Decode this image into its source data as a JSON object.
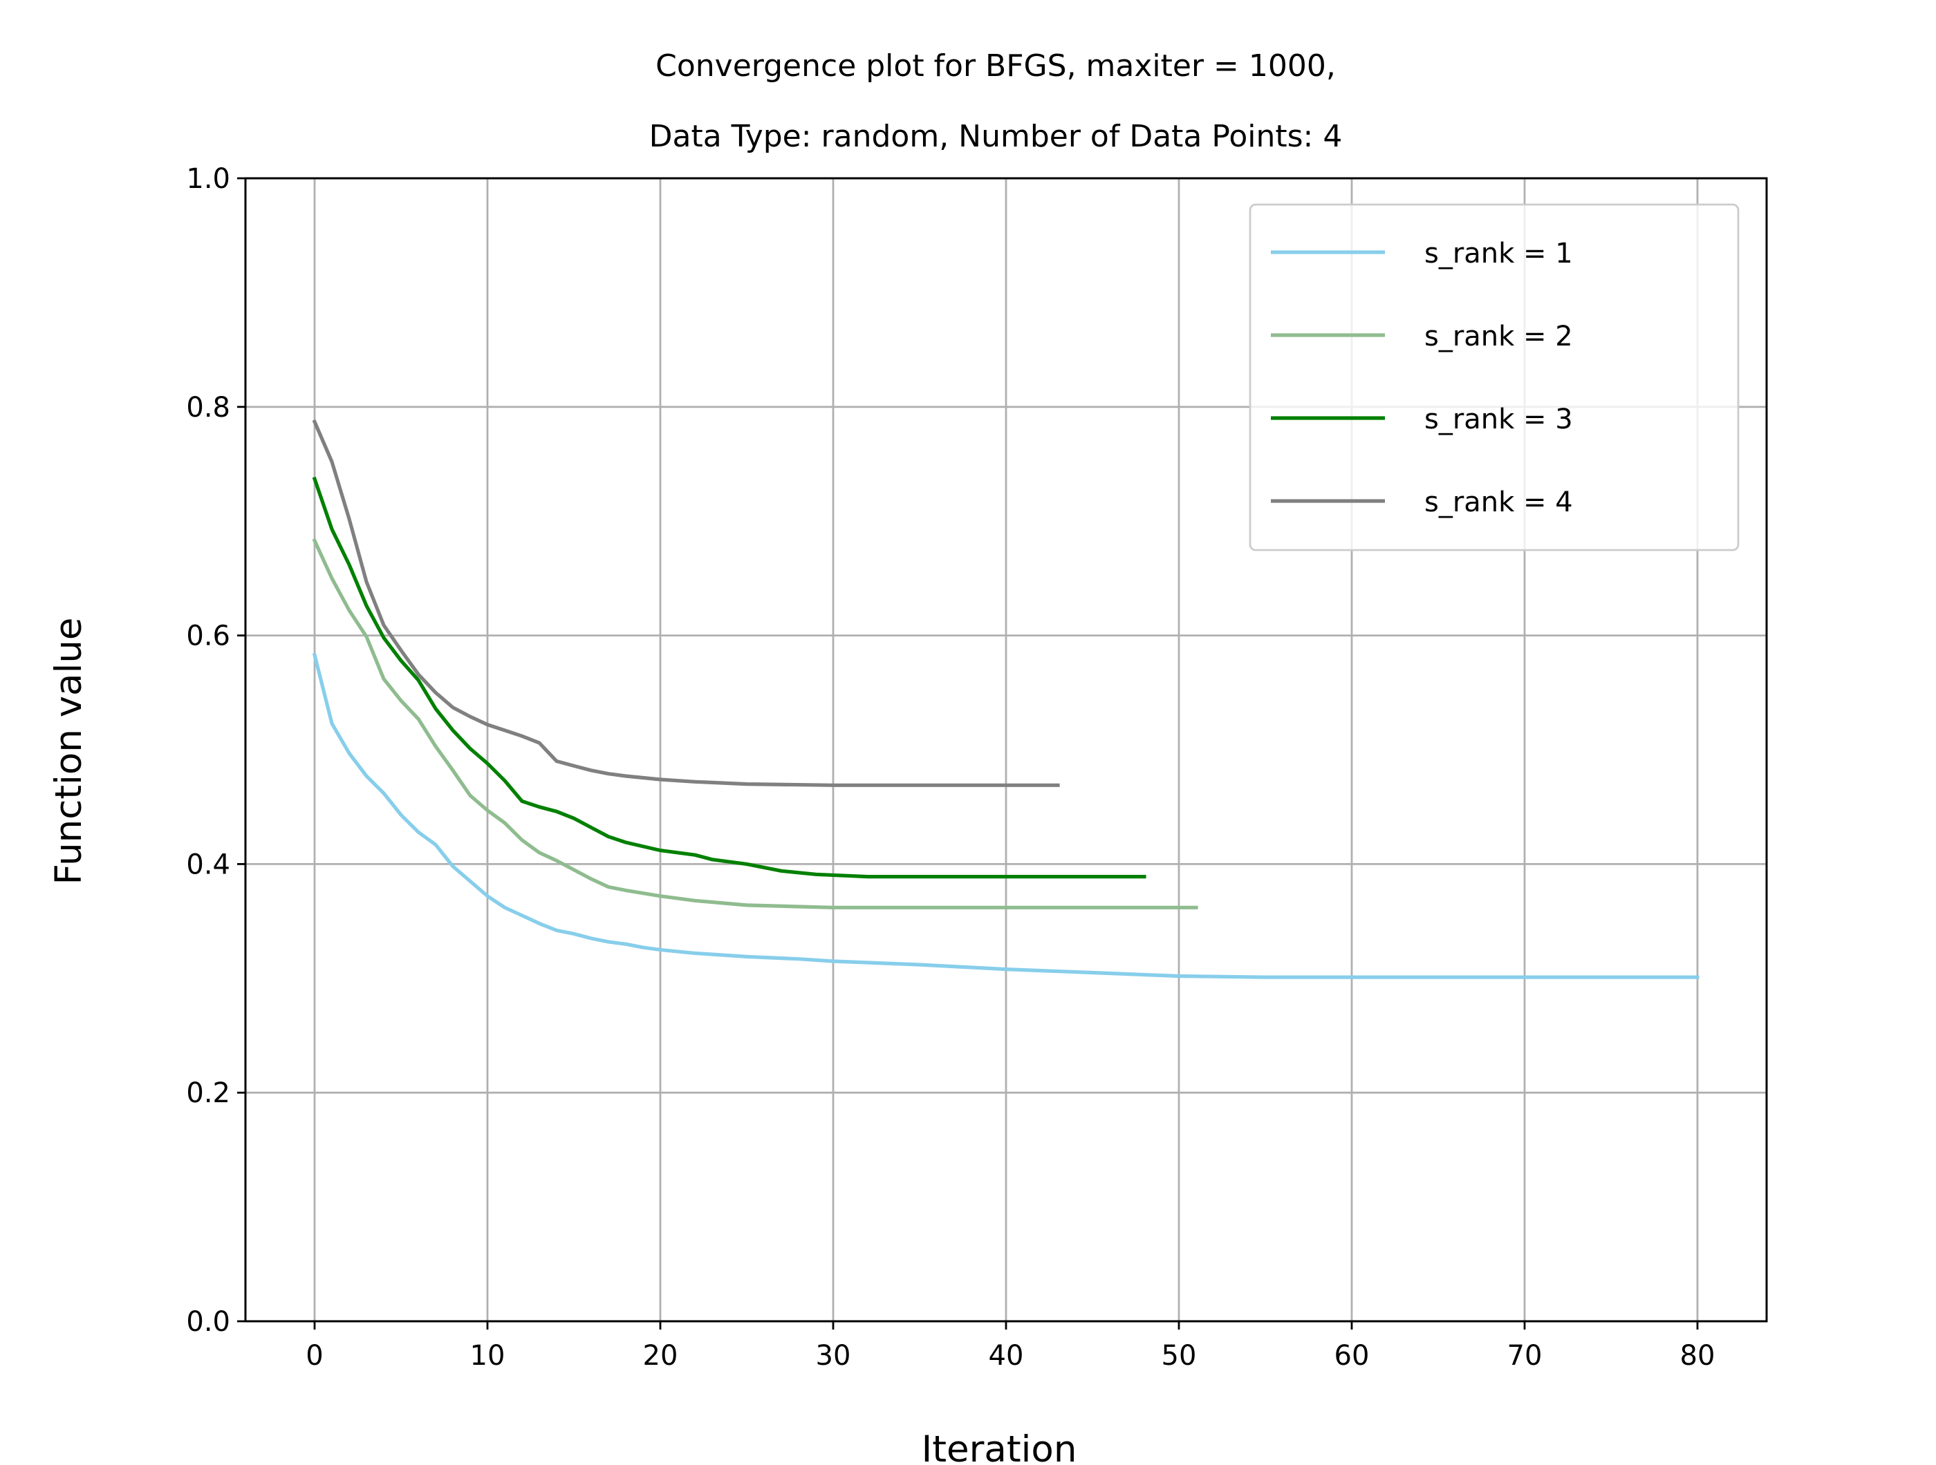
{
  "chart_data": {
    "type": "line",
    "title_line1": "Convergence plot for BFGS, maxiter = 1000,",
    "title_line2": "Data Type: random, Number of Data Points: 4",
    "xlabel": "Iteration",
    "ylabel": "Function value",
    "xlim": [
      -4,
      84
    ],
    "ylim": [
      0.0,
      1.0
    ],
    "xticks": [
      0,
      10,
      20,
      30,
      40,
      50,
      60,
      70,
      80
    ],
    "xtick_labels": [
      "0",
      "10",
      "20",
      "30",
      "40",
      "50",
      "60",
      "70",
      "80"
    ],
    "yticks": [
      0.0,
      0.2,
      0.4,
      0.6,
      0.8,
      1.0
    ],
    "ytick_labels": [
      "0.0",
      "0.2",
      "0.4",
      "0.6",
      "0.8",
      "1.0"
    ],
    "grid": true,
    "legend_position": "top-right",
    "series": [
      {
        "name": "s_rank = 1",
        "color": "#87ceeb",
        "points": [
          [
            0,
            0.583
          ],
          [
            1,
            0.523
          ],
          [
            2,
            0.497
          ],
          [
            3,
            0.477
          ],
          [
            4,
            0.462
          ],
          [
            5,
            0.443
          ],
          [
            6,
            0.428
          ],
          [
            7,
            0.417
          ],
          [
            8,
            0.398
          ],
          [
            9,
            0.385
          ],
          [
            10,
            0.372
          ],
          [
            11,
            0.362
          ],
          [
            12,
            0.355
          ],
          [
            13,
            0.348
          ],
          [
            14,
            0.342
          ],
          [
            15,
            0.339
          ],
          [
            16,
            0.335
          ],
          [
            17,
            0.332
          ],
          [
            18,
            0.33
          ],
          [
            19,
            0.327
          ],
          [
            20,
            0.325
          ],
          [
            22,
            0.322
          ],
          [
            25,
            0.319
          ],
          [
            28,
            0.317
          ],
          [
            30,
            0.315
          ],
          [
            35,
            0.312
          ],
          [
            40,
            0.308
          ],
          [
            45,
            0.305
          ],
          [
            50,
            0.302
          ],
          [
            55,
            0.301
          ],
          [
            60,
            0.301
          ],
          [
            70,
            0.301
          ],
          [
            80,
            0.301
          ]
        ]
      },
      {
        "name": "s_rank = 2",
        "color": "#8fbc8f",
        "points": [
          [
            0,
            0.683
          ],
          [
            1,
            0.65
          ],
          [
            2,
            0.622
          ],
          [
            3,
            0.599
          ],
          [
            4,
            0.562
          ],
          [
            5,
            0.543
          ],
          [
            6,
            0.527
          ],
          [
            7,
            0.503
          ],
          [
            8,
            0.482
          ],
          [
            9,
            0.46
          ],
          [
            10,
            0.447
          ],
          [
            11,
            0.436
          ],
          [
            12,
            0.421
          ],
          [
            13,
            0.41
          ],
          [
            14,
            0.403
          ],
          [
            15,
            0.395
          ],
          [
            16,
            0.387
          ],
          [
            17,
            0.38
          ],
          [
            18,
            0.377
          ],
          [
            20,
            0.372
          ],
          [
            22,
            0.368
          ],
          [
            25,
            0.364
          ],
          [
            30,
            0.362
          ],
          [
            35,
            0.362
          ],
          [
            40,
            0.362
          ],
          [
            45,
            0.362
          ],
          [
            51,
            0.362
          ]
        ]
      },
      {
        "name": "s_rank = 3",
        "color": "#008000",
        "points": [
          [
            0,
            0.737
          ],
          [
            1,
            0.693
          ],
          [
            2,
            0.662
          ],
          [
            3,
            0.626
          ],
          [
            4,
            0.598
          ],
          [
            5,
            0.578
          ],
          [
            6,
            0.561
          ],
          [
            7,
            0.536
          ],
          [
            8,
            0.517
          ],
          [
            9,
            0.501
          ],
          [
            10,
            0.488
          ],
          [
            11,
            0.473
          ],
          [
            12,
            0.455
          ],
          [
            13,
            0.45
          ],
          [
            14,
            0.446
          ],
          [
            15,
            0.44
          ],
          [
            16,
            0.432
          ],
          [
            17,
            0.424
          ],
          [
            18,
            0.419
          ],
          [
            20,
            0.412
          ],
          [
            22,
            0.408
          ],
          [
            23,
            0.404
          ],
          [
            25,
            0.4
          ],
          [
            27,
            0.394
          ],
          [
            29,
            0.391
          ],
          [
            32,
            0.389
          ],
          [
            35,
            0.389
          ],
          [
            40,
            0.389
          ],
          [
            48,
            0.389
          ]
        ]
      },
      {
        "name": "s_rank = 4",
        "color": "#808080",
        "points": [
          [
            0,
            0.787
          ],
          [
            1,
            0.752
          ],
          [
            2,
            0.702
          ],
          [
            3,
            0.647
          ],
          [
            4,
            0.609
          ],
          [
            5,
            0.587
          ],
          [
            6,
            0.566
          ],
          [
            7,
            0.55
          ],
          [
            8,
            0.537
          ],
          [
            9,
            0.529
          ],
          [
            10,
            0.522
          ],
          [
            11,
            0.517
          ],
          [
            12,
            0.512
          ],
          [
            13,
            0.506
          ],
          [
            14,
            0.49
          ],
          [
            15,
            0.486
          ],
          [
            16,
            0.482
          ],
          [
            17,
            0.479
          ],
          [
            18,
            0.477
          ],
          [
            20,
            0.474
          ],
          [
            22,
            0.472
          ],
          [
            25,
            0.47
          ],
          [
            30,
            0.469
          ],
          [
            35,
            0.469
          ],
          [
            40,
            0.469
          ],
          [
            43,
            0.469
          ]
        ]
      }
    ]
  }
}
